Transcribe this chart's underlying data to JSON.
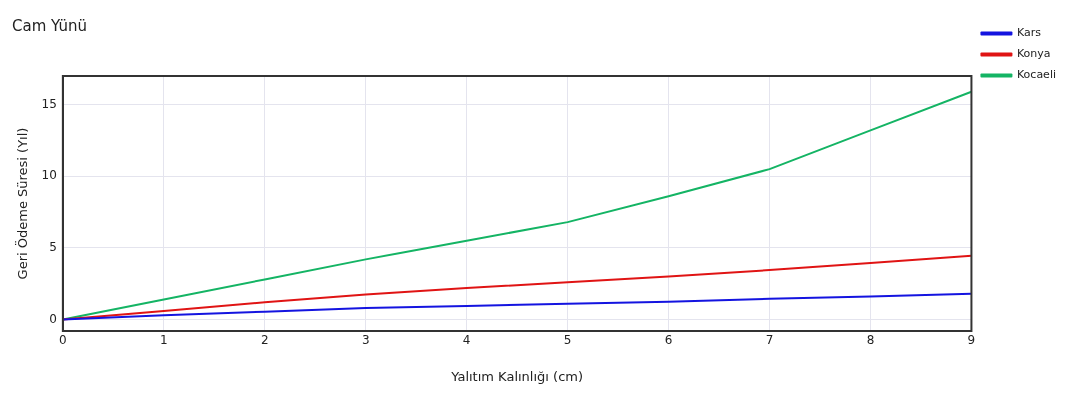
{
  "chart_data": {
    "type": "line",
    "title": "Cam Yünü",
    "xlabel": "Yalıtım Kalınlığı (cm)",
    "ylabel": "Geri Ödeme Süresi (Yıl)",
    "x": [
      0,
      1,
      2,
      3,
      4,
      5,
      6,
      7,
      8,
      9
    ],
    "series": [
      {
        "name": "Kars",
        "color": "#1414e0",
        "values": [
          0,
          0.3,
          0.55,
          0.8,
          0.95,
          1.1,
          1.25,
          1.45,
          1.6,
          1.8
        ]
      },
      {
        "name": "Konya",
        "color": "#e01414",
        "values": [
          0,
          0.6,
          1.2,
          1.75,
          2.2,
          2.6,
          3.0,
          3.45,
          3.95,
          4.45
        ]
      },
      {
        "name": "Kocaeli",
        "color": "#14b464",
        "values": [
          0,
          1.4,
          2.8,
          4.2,
          5.5,
          6.8,
          8.6,
          10.5,
          13.2,
          15.9
        ]
      }
    ],
    "xlim": [
      0,
      9
    ],
    "xticks": [
      0,
      1,
      2,
      3,
      4,
      5,
      6,
      7,
      8,
      9
    ],
    "ylim": [
      -0.8,
      17
    ],
    "yticks": [
      0,
      5,
      10,
      15
    ],
    "grid": true,
    "legend": "top right",
    "marker": "none",
    "line_style": "solid"
  }
}
